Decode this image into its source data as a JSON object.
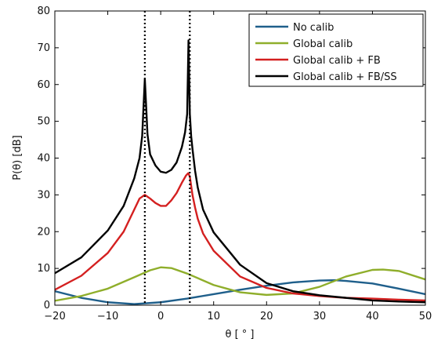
{
  "chart_data": {
    "type": "line",
    "title": "",
    "xlabel": "θ [ ° ]",
    "ylabel": "P(θ) [dB]",
    "xlim": [
      -20,
      50
    ],
    "ylim": [
      0,
      80
    ],
    "xticks": [
      -20,
      -10,
      0,
      10,
      20,
      30,
      40,
      50
    ],
    "yticks": [
      0,
      10,
      20,
      30,
      40,
      50,
      60,
      70,
      80
    ],
    "xtick_labels": [
      "−20",
      "−10",
      "0",
      "10",
      "20",
      "30",
      "40",
      "50"
    ],
    "ytick_labels": [
      "0",
      "10",
      "20",
      "30",
      "40",
      "50",
      "60",
      "70",
      "80"
    ],
    "grid": false,
    "legend_position": "top-right",
    "vertical_markers": [
      -3,
      5.5
    ],
    "series": [
      {
        "name": "No calib",
        "color": "#1f5f8b",
        "x": [
          -20,
          -15,
          -10,
          -5,
          0,
          5,
          10,
          15,
          20,
          25,
          30,
          33,
          35,
          40,
          45,
          50
        ],
        "y": [
          3.8,
          2.0,
          0.8,
          0.3,
          0.8,
          1.8,
          3.0,
          4.2,
          5.3,
          6.2,
          6.7,
          6.8,
          6.6,
          5.9,
          4.5,
          3.0
        ]
      },
      {
        "name": "Global calib",
        "color": "#8fae2b",
        "x": [
          -20,
          -15,
          -10,
          -5,
          -2,
          0,
          2,
          5,
          10,
          15,
          20,
          25,
          30,
          35,
          40,
          42,
          45,
          50
        ],
        "y": [
          1.2,
          2.5,
          4.5,
          7.6,
          9.5,
          10.3,
          10.1,
          8.6,
          5.5,
          3.5,
          2.8,
          3.2,
          5.0,
          7.8,
          9.6,
          9.7,
          9.3,
          7.0
        ]
      },
      {
        "name": "Global calib + FB",
        "color": "#d42020",
        "x": [
          -20,
          -15,
          -10,
          -7,
          -5,
          -4,
          -3,
          -2,
          -1,
          0,
          1,
          2,
          3,
          4,
          4.8,
          5.2,
          5.5,
          6,
          6.5,
          7,
          8,
          10,
          15,
          20,
          25,
          30,
          35,
          40,
          45,
          50
        ],
        "y": [
          4.2,
          8.0,
          14.2,
          20.0,
          26.0,
          29.0,
          30.0,
          29.0,
          27.8,
          27.0,
          27.0,
          28.5,
          30.5,
          33.3,
          35.3,
          35.9,
          35.0,
          30.0,
          26.5,
          23.5,
          19.5,
          14.8,
          7.8,
          4.7,
          3.2,
          2.5,
          2.0,
          1.8,
          1.5,
          1.3
        ]
      },
      {
        "name": "Global calib + FB/SS",
        "color": "#000000",
        "x": [
          -20,
          -15,
          -10,
          -7,
          -5,
          -4,
          -3.5,
          -3,
          -2.5,
          -2,
          -1,
          0,
          1,
          2,
          3,
          4,
          4.6,
          5,
          5.25,
          5.5,
          5.75,
          6,
          6.5,
          7,
          8,
          10,
          15,
          20,
          25,
          30,
          35,
          40,
          45,
          50
        ],
        "y": [
          8.7,
          13.0,
          20.3,
          27.0,
          34.5,
          40.0,
          46.0,
          61.5,
          46.5,
          41.0,
          38.0,
          36.3,
          36.0,
          36.8,
          38.8,
          43.0,
          47.0,
          52.0,
          72.0,
          52.0,
          46.0,
          42.5,
          36.5,
          32.0,
          26.0,
          19.8,
          11.0,
          6.0,
          3.8,
          2.7,
          2.0,
          1.3,
          1.0,
          0.8
        ]
      }
    ]
  }
}
